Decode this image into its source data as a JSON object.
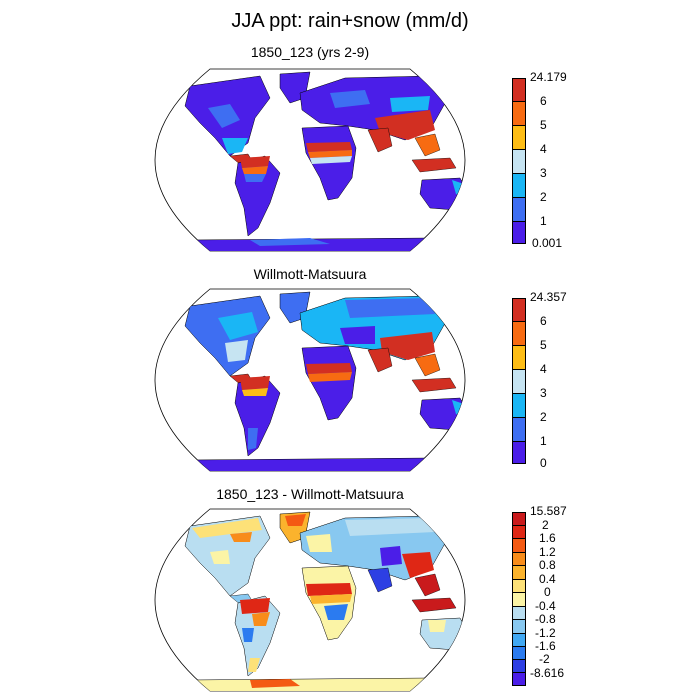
{
  "title": "JJA ppt: rain+snow (mm/d)",
  "panels": [
    {
      "title": "1850_123 (yrs 2-9)",
      "colorbar": {
        "colors": [
          "#4b1ee8",
          "#3e6ef2",
          "#1ab6f5",
          "#c6e4f2",
          "#fdbd16",
          "#f76b12",
          "#d22f22"
        ],
        "labels": [
          "0.001",
          "1",
          "2",
          "3",
          "4",
          "5",
          "6",
          "24.179"
        ]
      }
    },
    {
      "title": "Willmott-Matsuura",
      "colorbar": {
        "colors": [
          "#4b1ee8",
          "#3e6ef2",
          "#1ab6f5",
          "#c6e4f2",
          "#fdbd16",
          "#f76b12",
          "#d22f22"
        ],
        "labels": [
          "0",
          "1",
          "2",
          "3",
          "4",
          "5",
          "6",
          "24.357"
        ]
      }
    },
    {
      "title": "1850_123 - Willmott-Matsuura",
      "colorbar": {
        "colors": [
          "#4b1ee8",
          "#2d3fe3",
          "#2b7bf0",
          "#40a8f3",
          "#88c8f0",
          "#b9def1",
          "#fbf4a6",
          "#fde178",
          "#fbb32d",
          "#f88c1a",
          "#f45a13",
          "#df2715",
          "#c91a1c"
        ],
        "labels": [
          "-8.616",
          "-2",
          "-1.6",
          "-1.2",
          "-0.8",
          "-0.4",
          "0",
          "0.4",
          "0.8",
          "1.2",
          "1.6",
          "2",
          "15.587"
        ]
      }
    }
  ]
}
